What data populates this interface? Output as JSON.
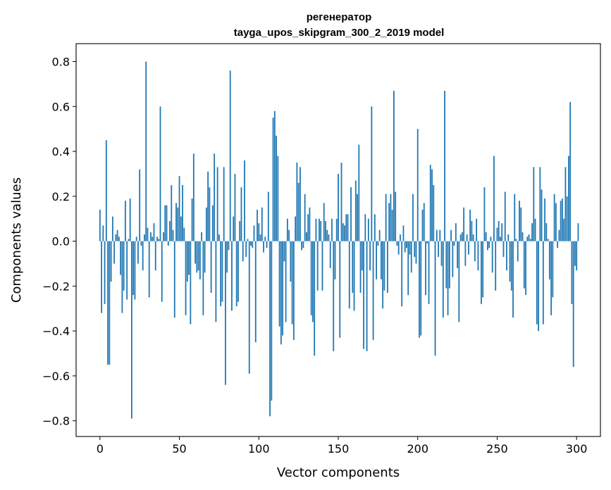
{
  "chart_data": {
    "type": "bar",
    "title": "регенератор",
    "subtitle": "tayga_upos_skipgram_300_2_2019 model",
    "xlabel": "Vector components",
    "ylabel": "Components values",
    "xlim": [
      -15,
      315
    ],
    "ylim": [
      -0.87,
      0.88
    ],
    "xticks": [
      0,
      50,
      100,
      150,
      200,
      250,
      300
    ],
    "xtick_labels": [
      "0",
      "50",
      "100",
      "150",
      "200",
      "250",
      "300"
    ],
    "yticks": [
      -0.8,
      -0.6,
      -0.4,
      -0.2,
      0.0,
      0.2,
      0.4,
      0.6,
      0.8
    ],
    "ytick_labels": [
      "−0.8",
      "−0.6",
      "−0.4",
      "−0.2",
      "0.0",
      "0.2",
      "0.4",
      "0.6",
      "0.8"
    ],
    "bar_color": "#1f77b4",
    "grid": false,
    "legend": "none",
    "values": [
      0.14,
      -0.32,
      0.07,
      -0.28,
      0.45,
      -0.55,
      -0.55,
      -0.18,
      0.11,
      -0.1,
      0.03,
      0.05,
      0.02,
      -0.15,
      -0.32,
      -0.22,
      0.18,
      -0.26,
      0.01,
      0.19,
      -0.79,
      -0.24,
      -0.26,
      0.02,
      -0.1,
      0.32,
      -0.02,
      -0.13,
      0.03,
      0.8,
      0.06,
      -0.25,
      0.04,
      0.02,
      0.08,
      -0.13,
      0.02,
      0.01,
      0.6,
      -0.27,
      0.04,
      0.16,
      0.16,
      -0.02,
      0.09,
      0.25,
      0.05,
      -0.34,
      0.17,
      0.15,
      0.29,
      0.11,
      0.25,
      0.06,
      -0.33,
      -0.18,
      -0.15,
      -0.37,
      0.19,
      0.39,
      -0.1,
      -0.14,
      -0.13,
      -0.17,
      0.04,
      -0.33,
      -0.14,
      0.15,
      0.31,
      0.24,
      -0.23,
      0.16,
      0.39,
      -0.36,
      0.33,
      0.03,
      -0.29,
      -0.27,
      0.33,
      -0.64,
      -0.14,
      -0.04,
      0.76,
      -0.31,
      0.11,
      0.3,
      -0.29,
      -0.27,
      0.09,
      0.24,
      -0.09,
      0.36,
      -0.07,
      0.01,
      -0.59,
      -0.02,
      -0.03,
      0.07,
      -0.45,
      0.14,
      0.08,
      0.03,
      0.15,
      -0.05,
      0.02,
      -0.03,
      0.22,
      -0.78,
      -0.71,
      0.55,
      0.58,
      0.47,
      0.38,
      -0.38,
      -0.46,
      -0.42,
      -0.09,
      -0.36,
      0.1,
      0.05,
      -0.18,
      -0.37,
      -0.44,
      0.11,
      0.35,
      0.26,
      0.33,
      -0.04,
      -0.03,
      0.21,
      0.04,
      0.12,
      0.15,
      -0.33,
      -0.36,
      -0.51,
      0.1,
      -0.22,
      0.1,
      0.09,
      -0.22,
      0.17,
      0.09,
      0.05,
      0.03,
      -0.12,
      0.1,
      -0.49,
      -0.17,
      0.1,
      0.3,
      -0.43,
      0.35,
      0.08,
      0.07,
      0.12,
      0.12,
      -0.3,
      0.24,
      -0.23,
      -0.31,
      0.27,
      0.21,
      0.43,
      -0.23,
      -0.13,
      -0.48,
      0.12,
      -0.49,
      0.1,
      -0.13,
      0.6,
      -0.44,
      0.12,
      -0.17,
      -0.02,
      0.05,
      -0.17,
      -0.3,
      -0.22,
      0.21,
      -0.23,
      0.17,
      0.21,
      0.14,
      0.67,
      0.22,
      -0.02,
      -0.06,
      0.03,
      -0.29,
      0.07,
      -0.05,
      -0.03,
      -0.24,
      -0.06,
      -0.14,
      0.21,
      -0.07,
      -0.1,
      0.5,
      -0.43,
      -0.42,
      0.14,
      0.17,
      -0.24,
      -0.01,
      -0.28,
      0.34,
      0.32,
      0.25,
      -0.51,
      0.05,
      -0.07,
      0.05,
      -0.11,
      -0.34,
      0.67,
      -0.21,
      -0.33,
      -0.21,
      0.05,
      -0.16,
      -0.02,
      0.08,
      -0.12,
      -0.36,
      0.03,
      0.04,
      0.15,
      -0.11,
      0.03,
      -0.06,
      0.14,
      0.09,
      0.03,
      -0.09,
      0.1,
      -0.13,
      0.0,
      -0.28,
      -0.25,
      0.24,
      0.04,
      -0.04,
      -0.03,
      0.02,
      -0.14,
      0.38,
      -0.22,
      0.06,
      0.09,
      0.02,
      0.08,
      -0.07,
      0.22,
      -0.13,
      0.03,
      -0.18,
      -0.22,
      -0.34,
      0.21,
      0.01,
      -0.09,
      0.18,
      0.15,
      0.04,
      -0.21,
      -0.24,
      0.02,
      0.03,
      0.01,
      0.08,
      0.33,
      0.1,
      -0.37,
      -0.4,
      0.33,
      0.23,
      -0.37,
      0.19,
      0.08,
      0.01,
      -0.17,
      -0.33,
      -0.25,
      0.21,
      0.17,
      -0.03,
      0.05,
      0.18,
      0.19,
      0.1,
      0.33,
      0.2,
      0.38,
      0.62,
      -0.28,
      -0.56,
      -0.11,
      -0.13,
      0.08
    ]
  }
}
